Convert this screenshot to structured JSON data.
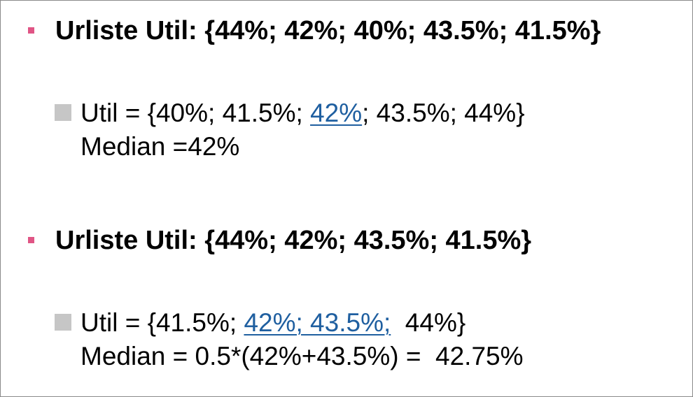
{
  "bullets": [
    {
      "heading": "Urliste Util: {44%; 42%; 40%; 43.5%; 41.5%}",
      "sub": {
        "line1_before": "Util = {40%; 41.5%; ",
        "line1_highlight": "42%",
        "line1_after": "; 43.5%; 44%}",
        "line2": "Median =42%"
      }
    },
    {
      "heading": "Urliste Util: {44%; 42%; 43.5%; 41.5%}",
      "sub": {
        "line1_before": "Util = {41.5%; ",
        "line1_highlight": "42%; 43.5%;",
        "line1_after": "  44%}",
        "line2": "Median = 0.5*(42%+43.5%) =  42.75%"
      }
    }
  ],
  "colors": {
    "main_marker": "#e05585",
    "sub_marker": "#c6c6c6",
    "highlight": "#1f5fa0"
  }
}
